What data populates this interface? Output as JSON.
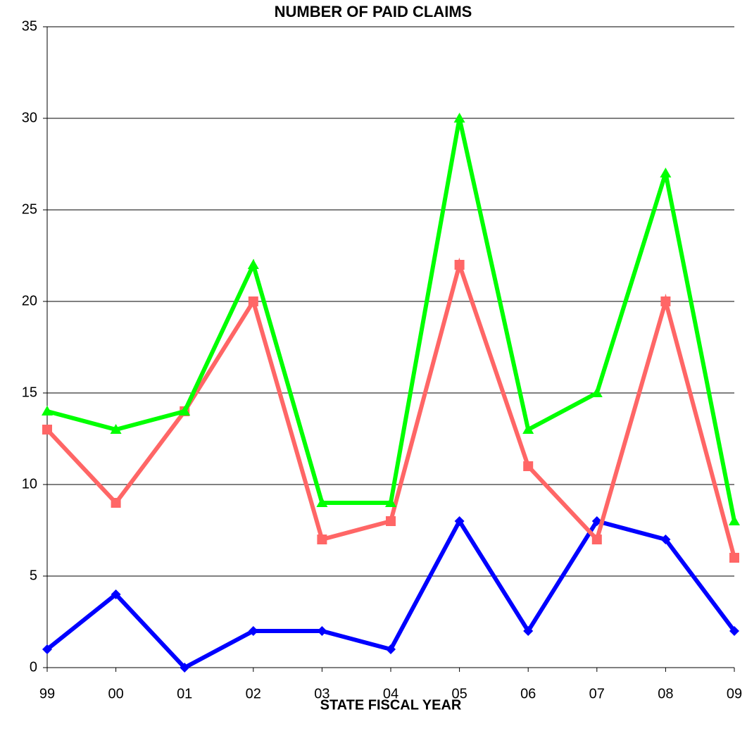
{
  "chart_data": {
    "type": "line",
    "title": "NUMBER OF PAID CLAIMS",
    "x_label": "STATE FISCAL YEAR",
    "categories": [
      "99",
      "00",
      "01",
      "02",
      "03",
      "04",
      "05",
      "06",
      "07",
      "08",
      "09"
    ],
    "series": [
      {
        "color": "#0000ff",
        "marker": "diamond",
        "values": [
          1,
          4,
          0,
          2,
          2,
          1,
          8,
          2,
          8,
          7,
          2
        ]
      },
      {
        "color": "#ff6666",
        "marker": "square",
        "values": [
          13,
          9,
          14,
          20,
          7,
          8,
          22,
          11,
          7,
          20,
          6
        ]
      },
      {
        "color": "#00ff00",
        "marker": "triangle",
        "values": [
          14,
          13,
          14,
          22,
          9,
          9,
          30,
          13,
          15,
          27,
          8
        ]
      }
    ],
    "ylim": [
      0,
      35
    ],
    "yticks": [
      0,
      5,
      10,
      15,
      20,
      25,
      30,
      35
    ],
    "grid": true
  }
}
